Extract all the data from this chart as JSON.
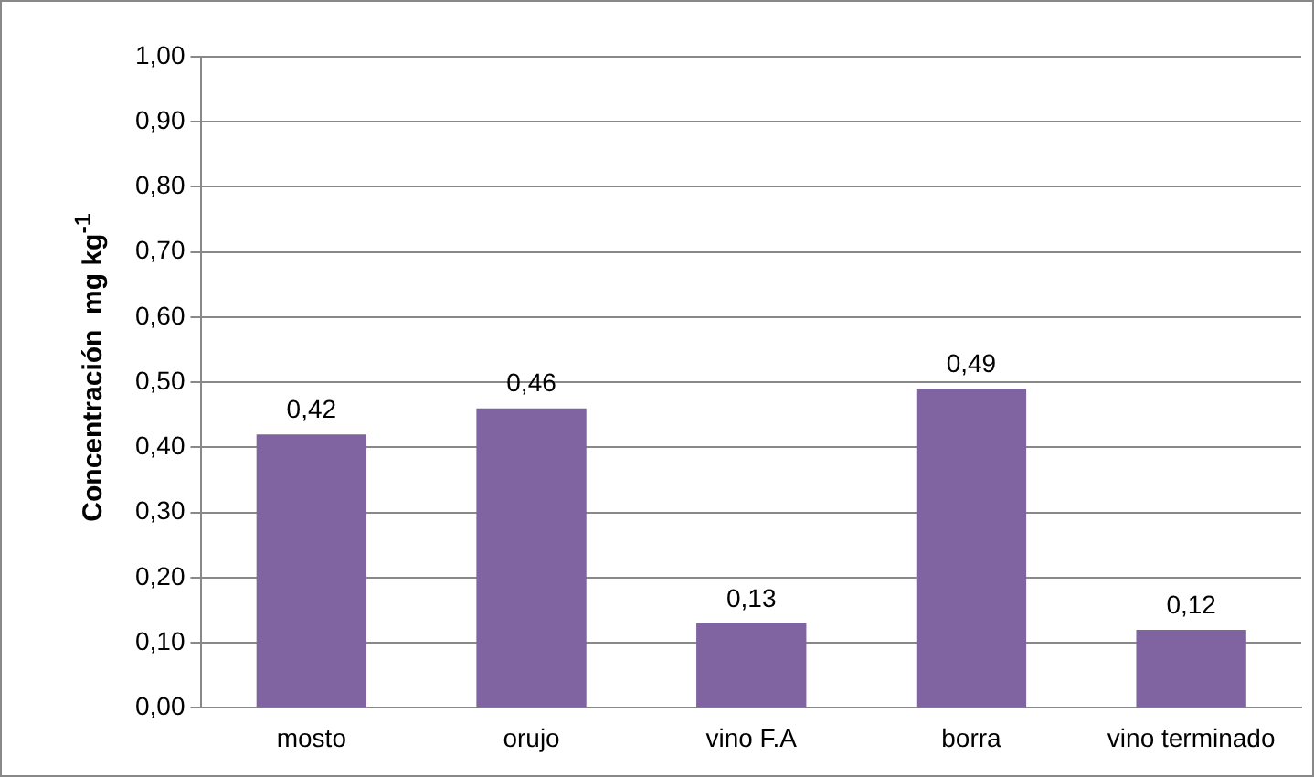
{
  "chart_data": {
    "type": "bar",
    "ylabel": "Concentración  mg kg$^{-1}$",
    "categories": [
      "mosto",
      "orujo",
      "vino F.A",
      "borra",
      "vino terminado"
    ],
    "values": [
      0.42,
      0.46,
      0.13,
      0.49,
      0.12
    ],
    "value_labels": [
      "0,42",
      "0,46",
      "0,13",
      "0,49",
      "0,12"
    ],
    "color": "#8064a2",
    "ylim": [
      0,
      1
    ],
    "yticks": [
      {
        "value": 0,
        "label": "0,00"
      },
      {
        "value": 0.1,
        "label": "0,10"
      },
      {
        "value": 0.2,
        "label": "0,20"
      },
      {
        "value": 0.3,
        "label": "0,30"
      },
      {
        "value": 0.4,
        "label": "0,40"
      },
      {
        "value": 0.5,
        "label": "0,50"
      },
      {
        "value": 0.6,
        "label": "0,60"
      },
      {
        "value": 0.7,
        "label": "0,70"
      },
      {
        "value": 0.8,
        "label": "0,80"
      },
      {
        "value": 0.9,
        "label": "0,90"
      },
      {
        "value": 1,
        "label": "1,00"
      }
    ],
    "grid": "y"
  }
}
